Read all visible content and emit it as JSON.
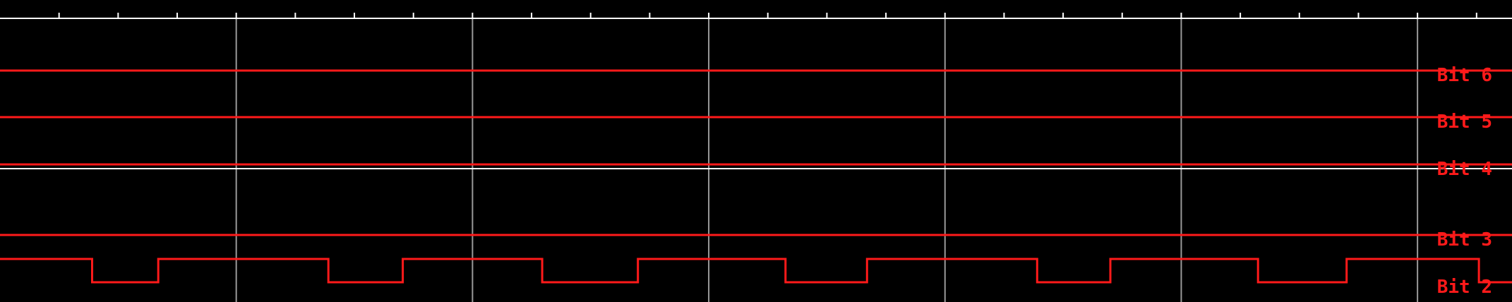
{
  "colors": {
    "background": "#000000",
    "grid": "#9a9a9a",
    "ruler": "#ffffff",
    "trace": "#ff1a1a",
    "label": "#ff1a1a"
  },
  "chart_data": {
    "type": "line",
    "title": "",
    "xlabel": "",
    "ylabel": "",
    "grid": true,
    "x_range": [
      0,
      12.8
    ],
    "major_divisions": 6.4,
    "minor_ticks_per_division": 4,
    "series": [
      {
        "name": "Bit 6",
        "x": [
          0,
          12.8
        ],
        "values": [
          0,
          0
        ]
      },
      {
        "name": "Bit 5",
        "x": [
          0,
          12.8
        ],
        "values": [
          0,
          0
        ]
      },
      {
        "name": "Bit 4",
        "x": [
          0,
          12.8
        ],
        "values": [
          0,
          0
        ]
      },
      {
        "name": "Bit 3",
        "x": [
          0,
          12.8
        ],
        "values": [
          0,
          0
        ]
      },
      {
        "name": "Bit 2",
        "x": [
          0,
          0.78,
          0.78,
          1.34,
          1.34,
          2.78,
          2.78,
          3.41,
          3.41,
          4.59,
          4.59,
          5.4,
          5.4,
          6.65,
          6.65,
          7.34,
          7.34,
          8.78,
          8.78,
          9.4,
          9.4,
          10.65,
          10.65,
          11.4,
          11.4,
          12.52,
          12.52,
          12.8
        ],
        "values": [
          1,
          1,
          0,
          0,
          1,
          1,
          0,
          0,
          1,
          1,
          0,
          0,
          1,
          1,
          0,
          0,
          1,
          1,
          0,
          0,
          1,
          1,
          0,
          0,
          1,
          1,
          0,
          0
        ]
      }
    ]
  }
}
